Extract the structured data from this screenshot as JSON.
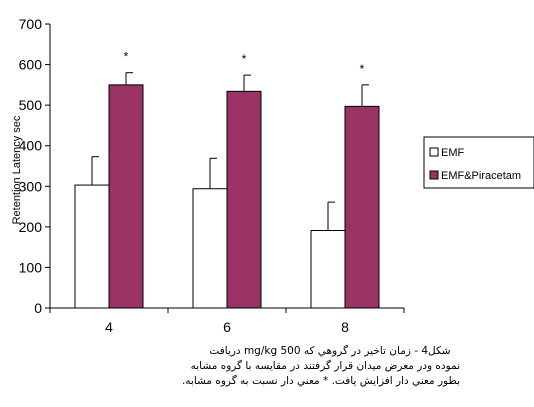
{
  "chart_data": {
    "type": "bar",
    "categories": [
      "4",
      "6",
      "8"
    ],
    "series": [
      {
        "name": "EMF",
        "values": [
          303,
          294,
          191
        ],
        "errors": [
          70,
          75,
          70
        ],
        "color": "#ffffff"
      },
      {
        "name": "EMF&Piracetam",
        "values": [
          550,
          534,
          497
        ],
        "errors": [
          30,
          40,
          53
        ],
        "color": "#993366"
      }
    ],
    "significance": [
      "*",
      "*",
      "*"
    ],
    "ylabel": "Retention Latency sec",
    "xlabel": "",
    "ylim": [
      0,
      700
    ],
    "yticks": [
      0,
      100,
      200,
      300,
      400,
      500,
      600,
      700
    ],
    "legend_position": "right",
    "grid": false
  },
  "caption": {
    "line1": "شكل4 - زمان تاخير در گروهي كه    mg/kg    500 دريافت",
    "line2": "نموده ودر معرض ميدان قرار گرفتند در مقايسه با گروه مشابه",
    "line3": "بطور معني دار افزايش يافت. * معني دار نسبت به گروه  مشابه."
  }
}
